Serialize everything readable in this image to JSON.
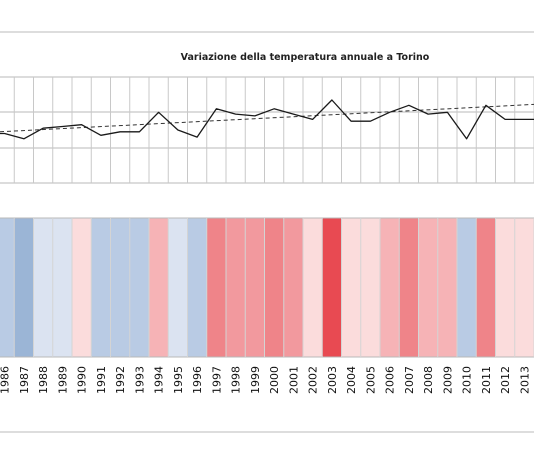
{
  "chart_data": {
    "type": "line",
    "title": "Variazione della temperatura annuale a Torino",
    "x": [
      1986,
      1987,
      1988,
      1989,
      1990,
      1991,
      1992,
      1993,
      1994,
      1995,
      1996,
      1997,
      1998,
      1999,
      2000,
      2001,
      2002,
      2003,
      2004,
      2005,
      2006,
      2007,
      2008,
      2009,
      2010,
      2011,
      2012,
      2013
    ],
    "x_tick_labels": [
      "1986",
      "1987",
      "1988",
      "1989",
      "1990",
      "1991",
      "1992",
      "1993",
      "1994",
      "1995",
      "1996",
      "1997",
      "1998",
      "1999",
      "2000",
      "2001",
      "2002",
      "2003",
      "2004",
      "2005",
      "2006",
      "2007",
      "2008",
      "2009",
      "2010",
      "2011",
      "2012",
      "2013"
    ],
    "series": [
      {
        "values": [
          0.3,
          0.0,
          0.6,
          0.7,
          0.8,
          0.2,
          0.4,
          0.4,
          1.5,
          0.5,
          0.1,
          1.7,
          1.4,
          1.3,
          1.7,
          1.4,
          1.1,
          2.2,
          1.0,
          1.0,
          1.5,
          1.9,
          1.4,
          1.5,
          0.0,
          1.9,
          1.1,
          1.1
        ],
        "color": "#1a1a1a"
      }
    ],
    "trend": {
      "start": 0.4,
      "end": 1.95,
      "style": "dashed",
      "color": "#333333"
    },
    "stripes": {
      "anomaly": [
        -3,
        -5,
        -1,
        -1,
        1,
        -3,
        -3,
        -3,
        2,
        -1,
        -3,
        4,
        3,
        3,
        4,
        3,
        1,
        6,
        1,
        1,
        2,
        4,
        2,
        2,
        -3,
        4,
        1,
        1
      ],
      "colors": {
        "-5": "#9bb5d6",
        "-4": "#a9c0dc",
        "-3": "#b9cbe4",
        "-2": "#c9d7ea",
        "-1": "#dbe3f1",
        "1": "#fbdcdc",
        "2": "#f6b3b6",
        "3": "#f2999e",
        "4": "#ef8489",
        "5": "#ec6a71",
        "6": "#e84a52"
      }
    },
    "ylim": [
      -2.5,
      3.5
    ],
    "grid": true,
    "legend": "none"
  }
}
